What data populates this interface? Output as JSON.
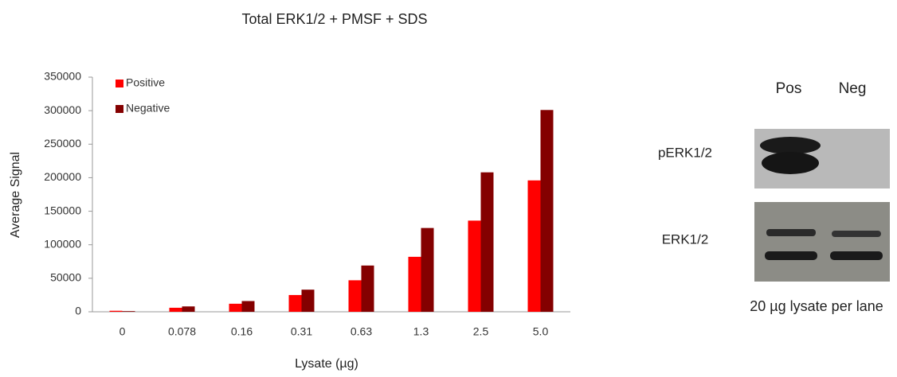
{
  "chart_data": {
    "type": "bar",
    "title": "Total ERK1/2 + PMSF + SDS",
    "x_label": "Lysate (µg)",
    "y_label": "Average Signal",
    "categories": [
      "0",
      "0.078",
      "0.16",
      "0.31",
      "0.63",
      "1.3",
      "2.5",
      "5.0"
    ],
    "series": [
      {
        "name": "Positive",
        "color": "#ff0000",
        "values": [
          1500,
          6000,
          12000,
          25000,
          47000,
          82000,
          136000,
          196000
        ]
      },
      {
        "name": "Negative",
        "color": "#840000",
        "values": [
          1000,
          8000,
          16000,
          33000,
          69000,
          125000,
          208000,
          301000
        ]
      }
    ],
    "ylim": [
      0,
      350000
    ],
    "yticks": [
      0,
      50000,
      100000,
      150000,
      200000,
      250000,
      300000,
      350000
    ],
    "grid": false,
    "legend": "top-left"
  },
  "blot": {
    "lanes": [
      "Pos",
      "Neg"
    ],
    "rows": [
      "pERK1/2",
      "ERK1/2"
    ],
    "caption": "20 µg lysate per lane"
  }
}
